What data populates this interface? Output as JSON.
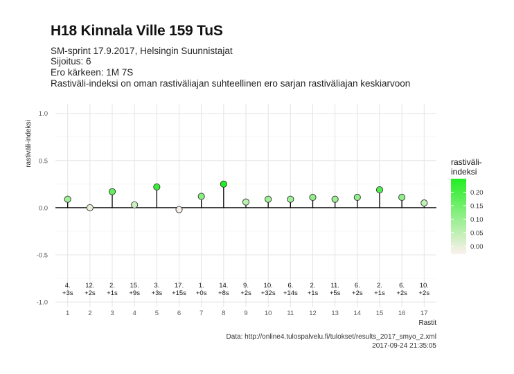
{
  "header": {
    "title": "H18 Kinnala Ville 159 TuS",
    "subtitle_lines": [
      "SM-sprint 17.9.2017, Helsingin Suunnistajat",
      "Sijoitus: 6",
      "Ero kärkeen: 1M 7S",
      "Rastiväli-indeksi on oman rastiväliajan suhteellinen ero sarjan rastiväliajan keskiarvoon"
    ]
  },
  "caption": {
    "source": "Data: http://online4.tulospalvelu.fi/tulokset/results_2017_smyo_2.xml",
    "timestamp": "2017-09-24 21:35:05"
  },
  "colors": {
    "low": "#fdf0ee",
    "high": "#22ee22",
    "grid": "#e4e4e4",
    "stem": "#000000"
  },
  "chart_data": {
    "type": "lollipop",
    "xlabel": "Rastit",
    "ylabel": "rastiväli-indeksi",
    "ylim": [
      -1.05,
      1.1
    ],
    "yticks": [
      "-1.0",
      "-0.5",
      "0.0",
      "0.5",
      "1.0"
    ],
    "x": [
      1,
      2,
      3,
      4,
      5,
      6,
      7,
      8,
      9,
      10,
      11,
      12,
      13,
      14,
      15,
      16,
      17
    ],
    "values": [
      0.09,
      0.0,
      0.17,
      0.03,
      0.22,
      -0.02,
      0.12,
      0.25,
      0.06,
      0.09,
      0.09,
      0.11,
      0.09,
      0.11,
      0.19,
      0.11,
      0.05
    ],
    "annotations": [
      [
        "4.",
        "+3s"
      ],
      [
        "12.",
        "+2s"
      ],
      [
        "2.",
        "+1s"
      ],
      [
        "15.",
        "+9s"
      ],
      [
        "3.",
        "+3s"
      ],
      [
        "17.",
        "+15s"
      ],
      [
        "1.",
        "+0s"
      ],
      [
        "14.",
        "+8s"
      ],
      [
        "9.",
        "+2s"
      ],
      [
        "10.",
        "+32s"
      ],
      [
        "6.",
        "+14s"
      ],
      [
        "2.",
        "+1s"
      ],
      [
        "11.",
        "+5s"
      ],
      [
        "6.",
        "+2s"
      ],
      [
        "2.",
        "+1s"
      ],
      [
        "6.",
        "+2s"
      ],
      [
        "10.",
        "+2s"
      ]
    ],
    "legend": {
      "title_lines": [
        "rastiväli-",
        "indeksi"
      ],
      "labels": [
        "0.20",
        "0.15",
        "0.10",
        "0.05",
        "0.00"
      ],
      "values": [
        0.2,
        0.15,
        0.1,
        0.05,
        0.0
      ],
      "range": [
        -0.03,
        0.25
      ],
      "position": "right"
    }
  }
}
